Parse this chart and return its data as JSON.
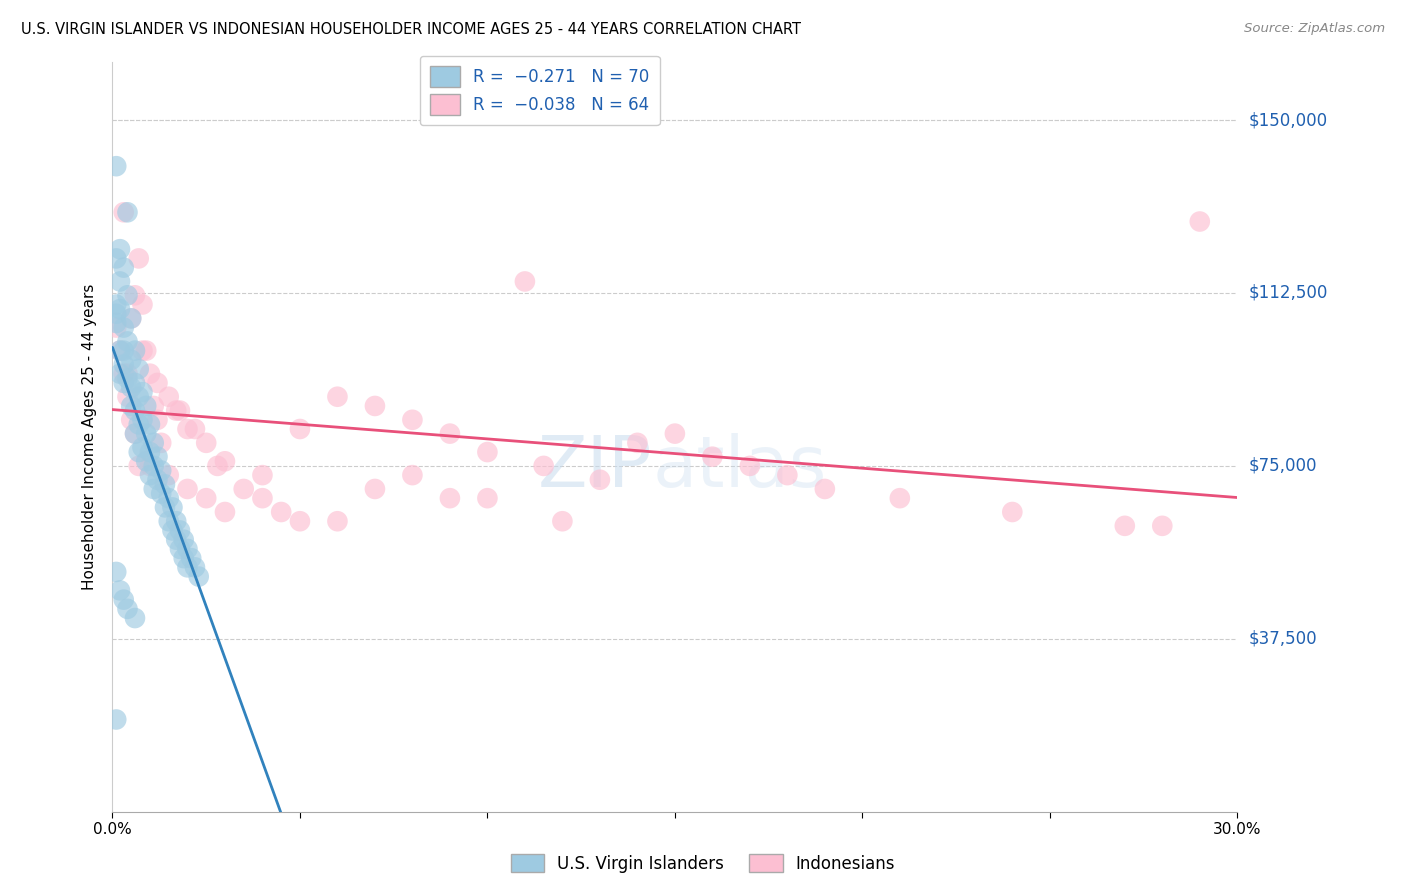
{
  "title": "U.S. VIRGIN ISLANDER VS INDONESIAN HOUSEHOLDER INCOME AGES 25 - 44 YEARS CORRELATION CHART",
  "source": "Source: ZipAtlas.com",
  "ylabel": "Householder Income Ages 25 - 44 years",
  "xlim": [
    0.0,
    0.3
  ],
  "ylim": [
    0,
    162500
  ],
  "yticks": [
    0,
    37500,
    75000,
    112500,
    150000
  ],
  "xticks": [
    0.0,
    0.05,
    0.1,
    0.15,
    0.2,
    0.25,
    0.3
  ],
  "xtick_labels": [
    "0.0%",
    "",
    "",
    "",
    "",
    "",
    "30.0%"
  ],
  "color_blue": "#9ecae1",
  "color_pink": "#fcbfd2",
  "color_blue_line": "#3182bd",
  "color_pink_line": "#e8507a",
  "color_dashed": "#bbbbbb",
  "watermark": "ZIPatlas",
  "blue_x": [
    0.001,
    0.001,
    0.001,
    0.001,
    0.001,
    0.002,
    0.002,
    0.002,
    0.002,
    0.002,
    0.003,
    0.003,
    0.003,
    0.003,
    0.003,
    0.004,
    0.004,
    0.004,
    0.004,
    0.005,
    0.005,
    0.005,
    0.005,
    0.006,
    0.006,
    0.006,
    0.006,
    0.007,
    0.007,
    0.007,
    0.007,
    0.008,
    0.008,
    0.008,
    0.009,
    0.009,
    0.009,
    0.01,
    0.01,
    0.01,
    0.011,
    0.011,
    0.011,
    0.012,
    0.012,
    0.013,
    0.013,
    0.014,
    0.014,
    0.015,
    0.015,
    0.016,
    0.016,
    0.017,
    0.017,
    0.018,
    0.018,
    0.019,
    0.019,
    0.02,
    0.02,
    0.021,
    0.022,
    0.023,
    0.001,
    0.002,
    0.003,
    0.004,
    0.006,
    0.001
  ],
  "blue_y": [
    140000,
    120000,
    110000,
    108000,
    106000,
    122000,
    115000,
    109000,
    100000,
    95000,
    118000,
    105000,
    100000,
    97000,
    93000,
    130000,
    112000,
    102000,
    94000,
    107000,
    98000,
    92000,
    88000,
    100000,
    93000,
    87000,
    82000,
    96000,
    90000,
    84000,
    78000,
    91000,
    85000,
    79000,
    88000,
    82000,
    76000,
    84000,
    78000,
    73000,
    80000,
    75000,
    70000,
    77000,
    72000,
    74000,
    69000,
    71000,
    66000,
    68000,
    63000,
    66000,
    61000,
    63000,
    59000,
    61000,
    57000,
    59000,
    55000,
    57000,
    53000,
    55000,
    53000,
    51000,
    52000,
    48000,
    46000,
    44000,
    42000,
    20000
  ],
  "pink_x": [
    0.001,
    0.002,
    0.003,
    0.004,
    0.005,
    0.006,
    0.007,
    0.008,
    0.009,
    0.01,
    0.011,
    0.012,
    0.013,
    0.015,
    0.017,
    0.02,
    0.025,
    0.03,
    0.04,
    0.05,
    0.06,
    0.07,
    0.08,
    0.09,
    0.1,
    0.115,
    0.13,
    0.15,
    0.17,
    0.19,
    0.01,
    0.015,
    0.02,
    0.025,
    0.03,
    0.04,
    0.05,
    0.07,
    0.09,
    0.11,
    0.14,
    0.16,
    0.18,
    0.21,
    0.24,
    0.27,
    0.006,
    0.008,
    0.012,
    0.018,
    0.022,
    0.028,
    0.035,
    0.045,
    0.06,
    0.08,
    0.1,
    0.12,
    0.28,
    0.004,
    0.003,
    0.005,
    0.007,
    0.29
  ],
  "pink_y": [
    105000,
    100000,
    95000,
    90000,
    85000,
    82000,
    120000,
    110000,
    100000,
    95000,
    88000,
    85000,
    80000,
    90000,
    87000,
    83000,
    80000,
    76000,
    73000,
    83000,
    90000,
    88000,
    85000,
    82000,
    78000,
    75000,
    72000,
    82000,
    75000,
    70000,
    75000,
    73000,
    70000,
    68000,
    65000,
    68000,
    63000,
    70000,
    68000,
    115000,
    80000,
    77000,
    73000,
    68000,
    65000,
    62000,
    112000,
    100000,
    93000,
    87000,
    83000,
    75000,
    70000,
    65000,
    63000,
    73000,
    68000,
    63000,
    62000,
    95000,
    130000,
    107000,
    75000,
    128000
  ]
}
